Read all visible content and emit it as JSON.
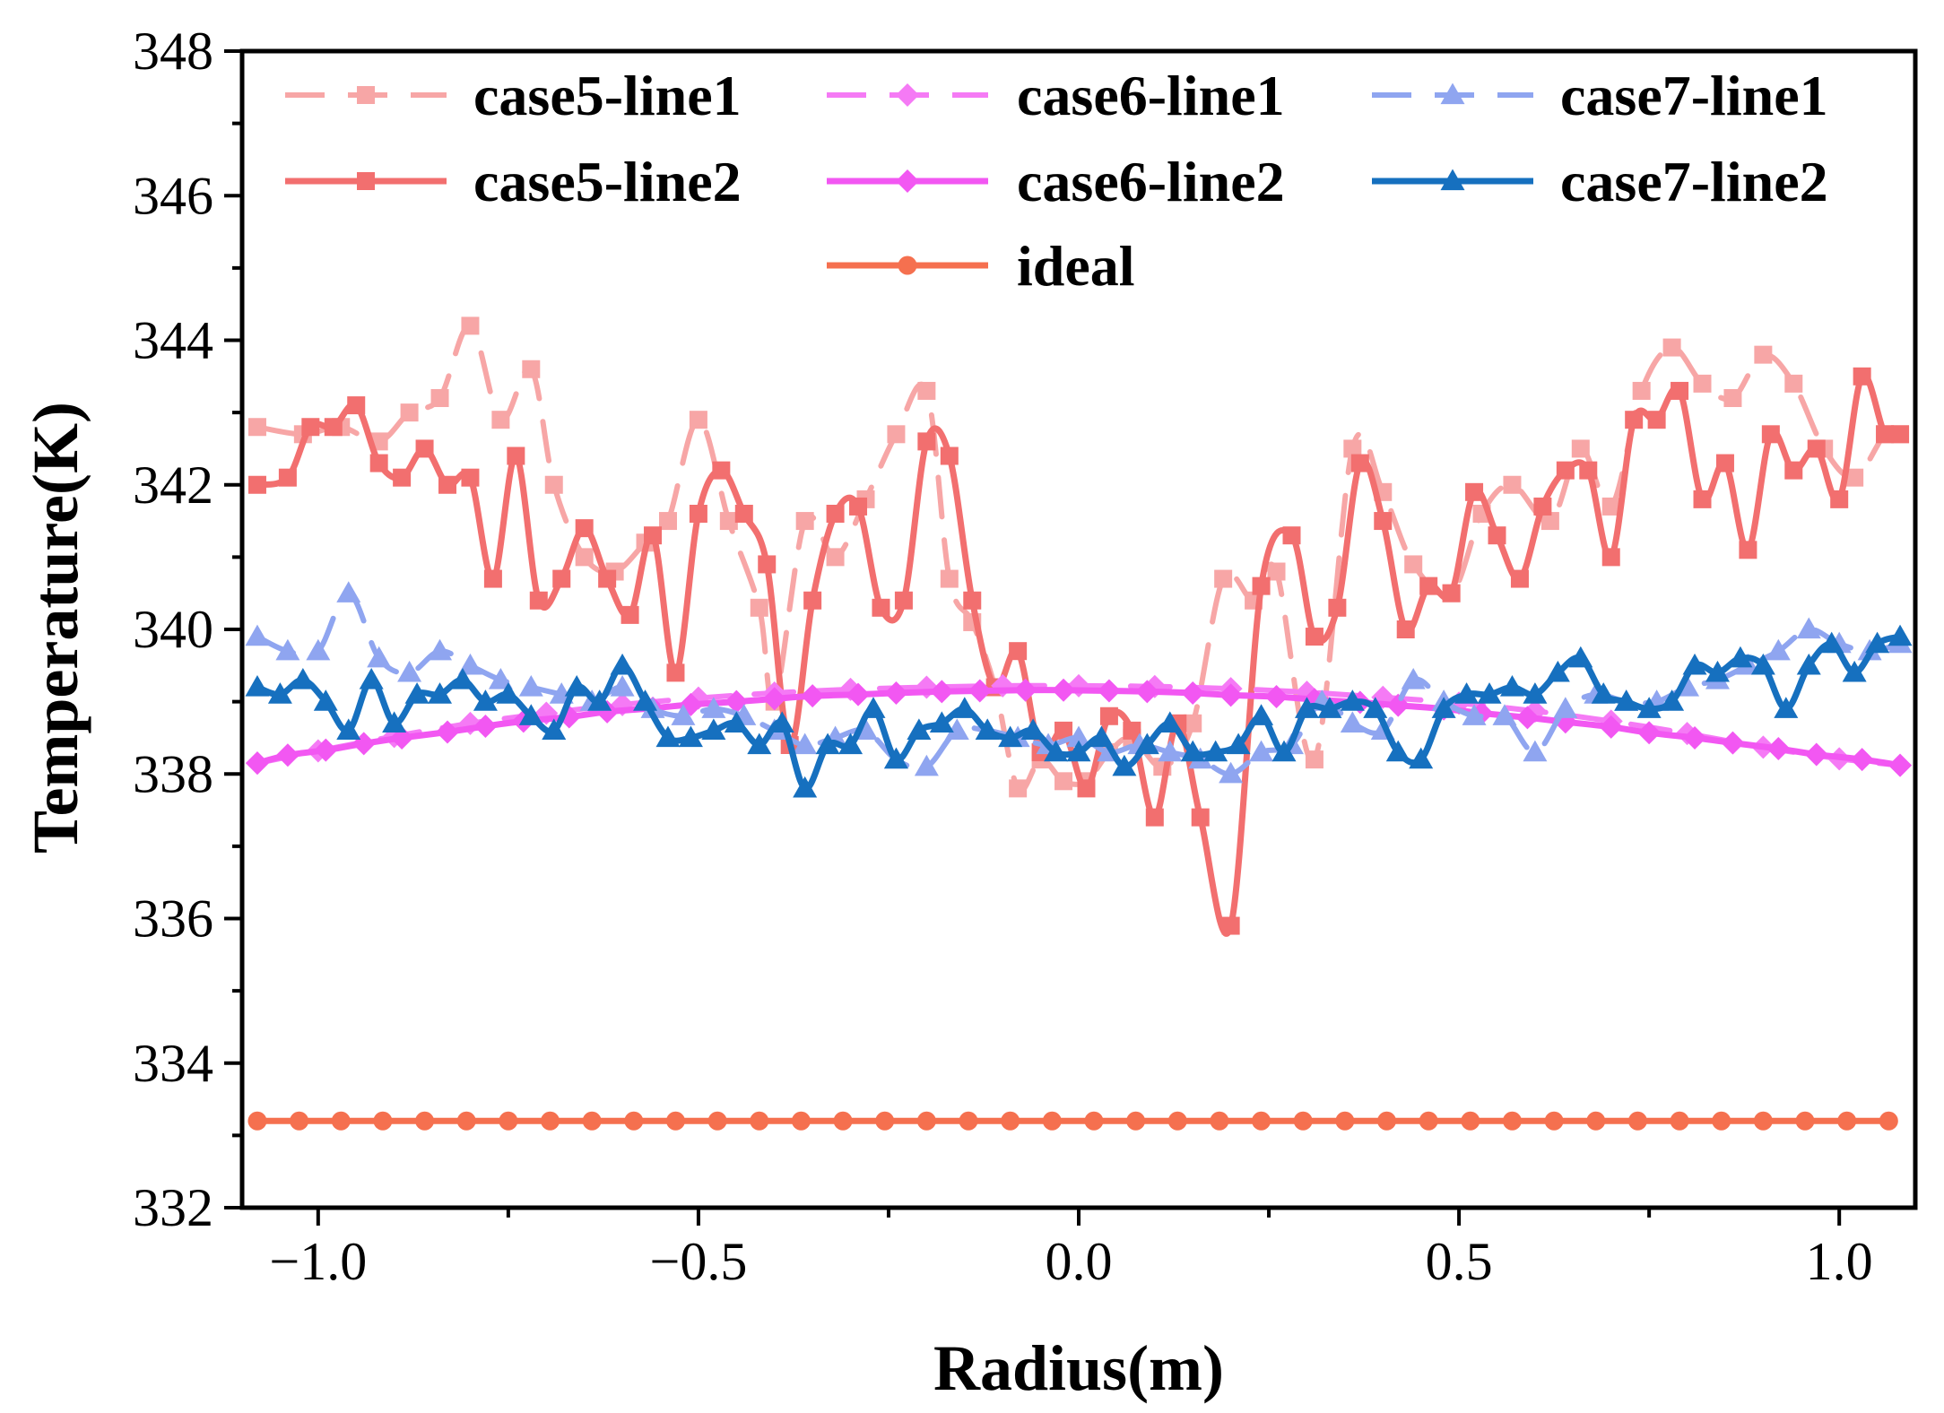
{
  "chart_data": {
    "type": "line",
    "title": "",
    "xlabel": "Radius(m)",
    "ylabel": "Temperature(K)",
    "xlim": [
      -1.1,
      1.1
    ],
    "ylim": [
      332,
      348
    ],
    "xticks": [
      -1.0,
      -0.5,
      0.0,
      0.5,
      1.0
    ],
    "xtick_labels": [
      "−1.0",
      "−0.5",
      "0.0",
      "0.5",
      "1.0"
    ],
    "yticks": [
      332,
      334,
      336,
      338,
      340,
      342,
      344,
      346,
      348
    ],
    "ytick_labels": [
      "332",
      "334",
      "336",
      "338",
      "340",
      "342",
      "344",
      "346",
      "348"
    ],
    "grid": false,
    "legend_position": "top",
    "series": [
      {
        "name": "case5-line1",
        "color": "#f7a6a6",
        "dash": true,
        "marker": "square",
        "x": [
          -1.08,
          -1.02,
          -0.97,
          -0.92,
          -0.88,
          -0.84,
          -0.8,
          -0.76,
          -0.72,
          -0.69,
          -0.65,
          -0.61,
          -0.57,
          -0.54,
          -0.5,
          -0.46,
          -0.42,
          -0.4,
          -0.36,
          -0.32,
          -0.28,
          -0.24,
          -0.2,
          -0.17,
          -0.14,
          -0.11,
          -0.08,
          -0.05,
          -0.02,
          0.01,
          0.04,
          0.07,
          0.11,
          0.15,
          0.19,
          0.23,
          0.26,
          0.31,
          0.36,
          0.4,
          0.44,
          0.49,
          0.53,
          0.57,
          0.62,
          0.66,
          0.7,
          0.74,
          0.78,
          0.82,
          0.86,
          0.9,
          0.94,
          0.98,
          1.02,
          1.06,
          1.08
        ],
        "y": [
          342.8,
          342.7,
          342.8,
          342.6,
          343.0,
          343.2,
          344.2,
          342.9,
          343.6,
          342.0,
          341.0,
          340.8,
          341.2,
          341.5,
          342.9,
          341.5,
          340.3,
          339.0,
          341.5,
          341.0,
          341.8,
          342.7,
          343.3,
          340.7,
          340.1,
          339.2,
          337.8,
          338.2,
          337.9,
          337.9,
          338.3,
          338.5,
          338.1,
          338.7,
          340.7,
          340.4,
          340.8,
          338.2,
          342.5,
          341.9,
          340.9,
          340.5,
          341.6,
          342.0,
          341.5,
          342.5,
          341.7,
          343.3,
          343.9,
          343.4,
          343.2,
          343.8,
          343.4,
          342.5,
          342.1,
          342.7,
          342.7
        ]
      },
      {
        "name": "case5-line2",
        "color": "#f26f6f",
        "dash": false,
        "marker": "square",
        "x": [
          -1.08,
          -1.04,
          -1.01,
          -0.98,
          -0.95,
          -0.92,
          -0.89,
          -0.86,
          -0.83,
          -0.8,
          -0.77,
          -0.74,
          -0.71,
          -0.68,
          -0.65,
          -0.62,
          -0.59,
          -0.56,
          -0.53,
          -0.5,
          -0.47,
          -0.44,
          -0.41,
          -0.38,
          -0.35,
          -0.32,
          -0.29,
          -0.26,
          -0.23,
          -0.2,
          -0.17,
          -0.14,
          -0.11,
          -0.08,
          -0.05,
          -0.02,
          0.01,
          0.04,
          0.07,
          0.1,
          0.13,
          0.16,
          0.2,
          0.24,
          0.28,
          0.31,
          0.34,
          0.37,
          0.4,
          0.43,
          0.46,
          0.49,
          0.52,
          0.55,
          0.58,
          0.61,
          0.64,
          0.67,
          0.7,
          0.73,
          0.76,
          0.79,
          0.82,
          0.85,
          0.88,
          0.91,
          0.94,
          0.97,
          1.0,
          1.03,
          1.06,
          1.08
        ],
        "y": [
          342.0,
          342.1,
          342.8,
          342.8,
          343.1,
          342.3,
          342.1,
          342.5,
          342.0,
          342.1,
          340.7,
          342.4,
          340.4,
          340.7,
          341.4,
          340.7,
          340.2,
          341.3,
          339.4,
          341.6,
          342.2,
          341.6,
          340.9,
          338.4,
          340.4,
          341.6,
          341.7,
          340.3,
          340.4,
          342.6,
          342.4,
          340.4,
          339.2,
          339.7,
          338.3,
          338.6,
          337.8,
          338.8,
          338.6,
          337.4,
          338.7,
          337.4,
          335.9,
          340.6,
          341.3,
          339.9,
          340.3,
          342.3,
          341.5,
          340.0,
          340.6,
          340.5,
          341.9,
          341.3,
          340.7,
          341.7,
          342.2,
          342.2,
          341.0,
          342.9,
          342.9,
          343.3,
          341.8,
          342.3,
          341.1,
          342.7,
          342.2,
          342.5,
          341.8,
          343.5,
          342.7,
          342.7
        ]
      },
      {
        "name": "case6-line1",
        "color": "#f57af5",
        "dash": true,
        "marker": "diamond",
        "x": [
          -1.08,
          -1.0,
          -0.9,
          -0.8,
          -0.7,
          -0.6,
          -0.5,
          -0.4,
          -0.3,
          -0.2,
          -0.1,
          0.0,
          0.1,
          0.2,
          0.3,
          0.4,
          0.5,
          0.6,
          0.7,
          0.8,
          0.9,
          1.0,
          1.08
        ],
        "y": [
          338.15,
          338.32,
          338.52,
          338.7,
          338.84,
          338.96,
          339.05,
          339.12,
          339.17,
          339.2,
          339.22,
          339.22,
          339.21,
          339.18,
          339.13,
          339.06,
          338.98,
          338.87,
          338.73,
          338.56,
          338.37,
          338.21,
          338.12
        ]
      },
      {
        "name": "case6-line2",
        "color": "#f257f2",
        "dash": false,
        "marker": "diamond",
        "x": [
          -1.08,
          -1.04,
          -0.99,
          -0.94,
          -0.89,
          -0.83,
          -0.78,
          -0.73,
          -0.67,
          -0.62,
          -0.56,
          -0.51,
          -0.45,
          -0.4,
          -0.35,
          -0.29,
          -0.24,
          -0.18,
          -0.13,
          -0.07,
          -0.02,
          0.04,
          0.09,
          0.15,
          0.2,
          0.26,
          0.31,
          0.37,
          0.42,
          0.48,
          0.53,
          0.59,
          0.64,
          0.7,
          0.75,
          0.81,
          0.86,
          0.92,
          0.97,
          1.03,
          1.08
        ],
        "y": [
          338.15,
          338.26,
          338.33,
          338.42,
          338.5,
          338.58,
          338.66,
          338.73,
          338.79,
          338.86,
          338.91,
          338.96,
          339.0,
          339.04,
          339.08,
          339.1,
          339.12,
          339.14,
          339.15,
          339.16,
          339.16,
          339.15,
          339.14,
          339.12,
          339.09,
          339.07,
          339.03,
          338.99,
          338.95,
          338.9,
          338.84,
          338.78,
          338.72,
          338.65,
          338.57,
          338.5,
          338.43,
          338.35,
          338.27,
          338.2,
          338.12
        ]
      },
      {
        "name": "case7-line1",
        "color": "#8fa5f0",
        "dash": true,
        "marker": "triangle",
        "x": [
          -1.08,
          -1.04,
          -1.0,
          -0.96,
          -0.92,
          -0.88,
          -0.84,
          -0.8,
          -0.76,
          -0.72,
          -0.68,
          -0.64,
          -0.6,
          -0.56,
          -0.52,
          -0.48,
          -0.44,
          -0.4,
          -0.36,
          -0.32,
          -0.28,
          -0.24,
          -0.2,
          -0.16,
          -0.12,
          -0.08,
          -0.04,
          0.0,
          0.04,
          0.08,
          0.12,
          0.16,
          0.2,
          0.24,
          0.28,
          0.32,
          0.36,
          0.4,
          0.44,
          0.48,
          0.52,
          0.56,
          0.6,
          0.64,
          0.68,
          0.72,
          0.76,
          0.8,
          0.84,
          0.88,
          0.92,
          0.96,
          1.0,
          1.04,
          1.08
        ],
        "y": [
          339.9,
          339.7,
          339.7,
          340.5,
          339.6,
          339.4,
          339.7,
          339.5,
          339.3,
          339.2,
          339.1,
          339.0,
          339.2,
          338.9,
          338.8,
          338.9,
          338.8,
          338.6,
          338.4,
          338.5,
          338.6,
          338.2,
          338.1,
          338.6,
          338.6,
          338.5,
          338.4,
          338.5,
          338.3,
          338.4,
          338.3,
          338.2,
          338.0,
          338.3,
          338.4,
          339.0,
          338.7,
          338.6,
          339.3,
          339.0,
          338.8,
          338.8,
          338.3,
          338.9,
          339.1,
          339.0,
          339.0,
          339.2,
          339.3,
          339.5,
          339.7,
          340.0,
          339.8,
          339.7,
          339.8
        ]
      },
      {
        "name": "case7-line2",
        "color": "#1670bf",
        "dash": false,
        "marker": "triangle",
        "x": [
          -1.08,
          -1.05,
          -1.02,
          -0.99,
          -0.96,
          -0.93,
          -0.9,
          -0.87,
          -0.84,
          -0.81,
          -0.78,
          -0.75,
          -0.72,
          -0.69,
          -0.66,
          -0.63,
          -0.6,
          -0.57,
          -0.54,
          -0.51,
          -0.48,
          -0.45,
          -0.42,
          -0.39,
          -0.36,
          -0.33,
          -0.3,
          -0.27,
          -0.24,
          -0.21,
          -0.18,
          -0.15,
          -0.12,
          -0.09,
          -0.06,
          -0.03,
          0.0,
          0.03,
          0.06,
          0.09,
          0.12,
          0.15,
          0.18,
          0.21,
          0.24,
          0.27,
          0.3,
          0.33,
          0.36,
          0.39,
          0.42,
          0.45,
          0.48,
          0.51,
          0.54,
          0.57,
          0.6,
          0.63,
          0.66,
          0.69,
          0.72,
          0.75,
          0.78,
          0.81,
          0.84,
          0.87,
          0.9,
          0.93,
          0.96,
          0.99,
          1.02,
          1.05,
          1.08
        ],
        "y": [
          339.2,
          339.1,
          339.3,
          339.0,
          338.6,
          339.3,
          338.7,
          339.1,
          339.1,
          339.3,
          339.0,
          339.1,
          338.8,
          338.6,
          339.2,
          339.0,
          339.5,
          339.0,
          338.5,
          338.5,
          338.6,
          338.7,
          338.4,
          338.7,
          337.8,
          338.4,
          338.4,
          338.9,
          338.2,
          338.6,
          338.7,
          338.9,
          338.6,
          338.5,
          338.6,
          338.3,
          338.3,
          338.5,
          338.1,
          338.4,
          338.7,
          338.3,
          338.3,
          338.4,
          338.8,
          338.3,
          338.9,
          338.9,
          339.0,
          338.9,
          338.3,
          338.2,
          338.9,
          339.1,
          339.1,
          339.2,
          339.1,
          339.4,
          339.6,
          339.1,
          339.0,
          338.9,
          339.0,
          339.5,
          339.4,
          339.6,
          339.5,
          338.9,
          339.5,
          339.8,
          339.4,
          339.8,
          339.9
        ]
      },
      {
        "name": "ideal",
        "color": "#f5704f",
        "dash": false,
        "marker": "circle",
        "x": [
          -1.08,
          -1.025,
          -0.97,
          -0.915,
          -0.86,
          -0.805,
          -0.75,
          -0.695,
          -0.64,
          -0.585,
          -0.53,
          -0.475,
          -0.42,
          -0.365,
          -0.31,
          -0.255,
          -0.2,
          -0.145,
          -0.09,
          -0.035,
          0.02,
          0.075,
          0.13,
          0.185,
          0.24,
          0.295,
          0.35,
          0.405,
          0.46,
          0.515,
          0.57,
          0.625,
          0.68,
          0.735,
          0.79,
          0.845,
          0.9,
          0.955,
          1.01,
          1.065
        ],
        "y": [
          333.2,
          333.2,
          333.2,
          333.2,
          333.2,
          333.2,
          333.2,
          333.2,
          333.2,
          333.2,
          333.2,
          333.2,
          333.2,
          333.2,
          333.2,
          333.2,
          333.2,
          333.2,
          333.2,
          333.2,
          333.2,
          333.2,
          333.2,
          333.2,
          333.2,
          333.2,
          333.2,
          333.2,
          333.2,
          333.2,
          333.2,
          333.2,
          333.2,
          333.2,
          333.2,
          333.2,
          333.2,
          333.2,
          333.2,
          333.2
        ]
      }
    ]
  }
}
